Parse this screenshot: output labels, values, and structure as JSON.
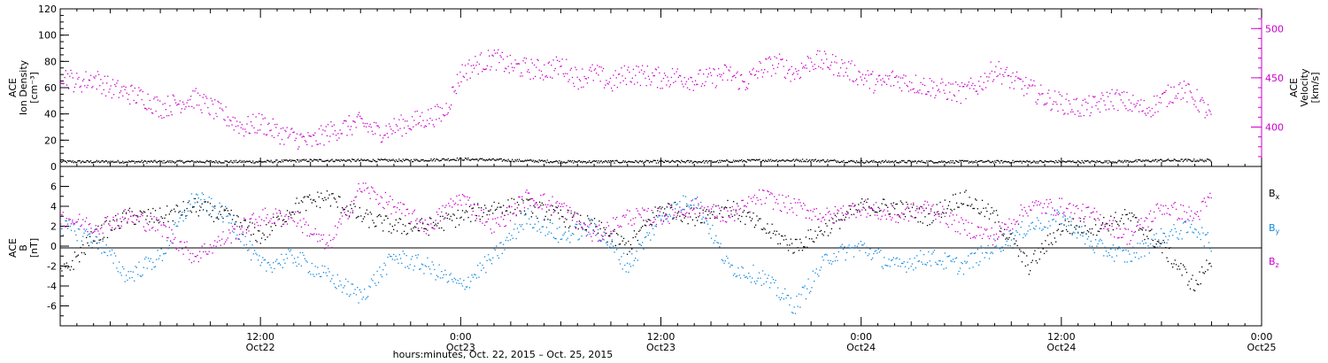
{
  "chart_data": [
    {
      "type": "scatter",
      "panel": "top",
      "ylabel_left": [
        "ACE",
        "Ion Density",
        "[cm⁻³]"
      ],
      "ylabel_right": [
        "ACE",
        "Velocity",
        "[km/s]"
      ],
      "ylim_left": [
        0,
        120
      ],
      "ylim_right": [
        360,
        520
      ],
      "yticks_left": [
        "0",
        "20",
        "40",
        "60",
        "80",
        "100",
        "120"
      ],
      "yticks_right": [
        "400",
        "450",
        "500"
      ],
      "series": [
        {
          "axis": "left",
          "color": "#000000",
          "x": [
            0,
            3,
            6,
            9,
            12,
            15,
            18,
            21,
            24,
            27,
            30,
            33,
            36,
            39,
            42,
            45,
            48,
            51,
            54,
            57,
            60,
            63,
            66,
            69
          ],
          "y": [
            4,
            4,
            4,
            4,
            4,
            5,
            5,
            5,
            6,
            5,
            4,
            4,
            4,
            4,
            5,
            5,
            4,
            4,
            4,
            4,
            4,
            4,
            5,
            5
          ]
        },
        {
          "axis": "right",
          "color": "#cc00cc",
          "x": [
            0,
            1,
            2,
            3,
            4,
            5,
            6,
            7,
            8,
            9,
            10,
            11,
            12,
            13,
            14,
            15,
            16,
            17,
            18,
            19,
            20,
            21,
            22,
            23,
            24,
            25,
            26,
            27,
            28,
            29,
            30,
            31,
            32,
            33,
            34,
            35,
            36,
            37,
            38,
            39,
            40,
            41,
            42,
            43,
            44,
            45,
            46,
            47,
            48,
            49,
            50,
            51,
            52,
            53,
            54,
            55,
            56,
            57,
            58,
            59,
            60,
            61,
            62,
            63,
            64,
            65,
            66,
            67,
            68,
            69
          ],
          "y": [
            455,
            445,
            450,
            440,
            435,
            430,
            420,
            425,
            430,
            420,
            410,
            400,
            405,
            395,
            390,
            385,
            395,
            400,
            405,
            395,
            400,
            405,
            410,
            415,
            455,
            465,
            470,
            462,
            460,
            458,
            463,
            450,
            455,
            445,
            455,
            453,
            450,
            452,
            448,
            450,
            455,
            445,
            460,
            465,
            455,
            468,
            466,
            460,
            452,
            444,
            450,
            445,
            442,
            438,
            435,
            443,
            460,
            448,
            440,
            430,
            425,
            420,
            422,
            430,
            425,
            418,
            428,
            440,
            430,
            410
          ]
        }
      ]
    },
    {
      "type": "scatter",
      "panel": "bottom",
      "ylabel_left": [
        "ACE",
        "B",
        "[nT]"
      ],
      "ylim": [
        -8,
        8
      ],
      "yticks": [
        "-6",
        "-4",
        "-2",
        "0",
        "2",
        "4",
        "6"
      ],
      "legend_position": "right",
      "series": [
        {
          "name": "Bx",
          "color": "#000000",
          "x": [
            0,
            2,
            4,
            6,
            8,
            10,
            12,
            14,
            16,
            18,
            20,
            22,
            24,
            26,
            28,
            30,
            32,
            34,
            36,
            38,
            40,
            42,
            44,
            46,
            48,
            50,
            52,
            54,
            56,
            58,
            60,
            62,
            64,
            66,
            68,
            69
          ],
          "y": [
            -3,
            1,
            3,
            3,
            4,
            3,
            1,
            4,
            5,
            3,
            2,
            2,
            3,
            4,
            4,
            3,
            2,
            0,
            4,
            3,
            4,
            2,
            0,
            2,
            4,
            4,
            3,
            5,
            3,
            -2,
            2,
            2,
            3,
            0,
            -4,
            -1
          ]
        },
        {
          "name": "By",
          "color": "#1188dd",
          "x": [
            0,
            2,
            4,
            6,
            8,
            10,
            12,
            14,
            16,
            18,
            20,
            22,
            24,
            26,
            28,
            30,
            32,
            34,
            36,
            38,
            40,
            42,
            44,
            46,
            48,
            50,
            52,
            54,
            56,
            58,
            60,
            62,
            64,
            66,
            68,
            69
          ],
          "y": [
            2,
            1,
            -3,
            -1,
            5,
            3,
            -2,
            -1,
            -3,
            -5,
            -1,
            -2,
            -4,
            -1,
            3,
            1,
            2,
            -2,
            3,
            5,
            -2,
            -3,
            -6,
            -1,
            0,
            -2,
            -1,
            -2,
            0,
            2,
            3,
            0,
            -1,
            1,
            2,
            0
          ]
        },
        {
          "name": "Bz",
          "color": "#cc00cc",
          "x": [
            0,
            2,
            4,
            6,
            8,
            10,
            12,
            14,
            16,
            18,
            20,
            22,
            24,
            26,
            28,
            30,
            32,
            34,
            36,
            38,
            40,
            42,
            44,
            46,
            48,
            50,
            52,
            54,
            56,
            58,
            60,
            62,
            64,
            66,
            68,
            69
          ],
          "y": [
            3,
            2,
            3,
            2,
            -1,
            1,
            3,
            3,
            0,
            6,
            4,
            2,
            5,
            2,
            5,
            4,
            1,
            3,
            3,
            4,
            3,
            5,
            4,
            3,
            4,
            3,
            4,
            2,
            1,
            4,
            4,
            3,
            1,
            4,
            3,
            5
          ]
        }
      ],
      "legend": {
        "bx_main": "B",
        "bx_sub": "x",
        "by_main": "B",
        "by_sub": "y",
        "bz_main": "B",
        "bz_sub": "z"
      }
    }
  ],
  "x_axis": {
    "range_hours": [
      0,
      72
    ],
    "tick_hours": [
      12,
      24,
      36,
      48,
      60,
      72
    ],
    "ticks": [
      {
        "time": "12:00",
        "date": "Oct22"
      },
      {
        "time": "0:00",
        "date": "Oct23"
      },
      {
        "time": "12:00",
        "date": "Oct23"
      },
      {
        "time": "0:00",
        "date": "Oct24"
      },
      {
        "time": "12:00",
        "date": "Oct24"
      },
      {
        "time": "0:00",
        "date": "Oct25"
      }
    ],
    "xlabel": "hours:minutes, Oct. 22, 2015 – Oct. 25, 2015"
  },
  "colors": {
    "axes": "#000000",
    "density": "#000000",
    "velocity": "#cc00cc",
    "bx": "#000000",
    "by": "#1188dd",
    "bz": "#cc00cc"
  }
}
